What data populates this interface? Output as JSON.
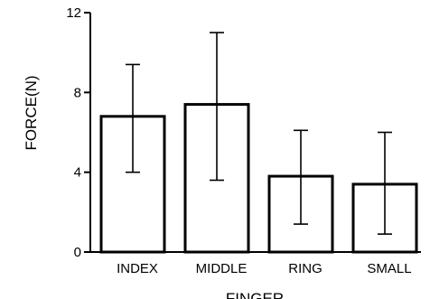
{
  "chart_data": {
    "type": "bar",
    "title": "",
    "xlabel": "FINGER",
    "ylabel": "FORCE(N)",
    "categories": [
      "INDEX",
      "MIDDLE",
      "RING",
      "SMALL"
    ],
    "values": [
      6.8,
      7.4,
      3.8,
      3.4
    ],
    "error_low": [
      4.0,
      3.6,
      1.4,
      0.9
    ],
    "error_high": [
      9.4,
      11.0,
      6.1,
      6.0
    ],
    "ylim": [
      0,
      12
    ],
    "yticks": [
      "0",
      "4",
      "8",
      "12"
    ],
    "grid": false,
    "legend": "none",
    "bar_fill": "#ffffff",
    "bar_stroke": "#000000"
  }
}
